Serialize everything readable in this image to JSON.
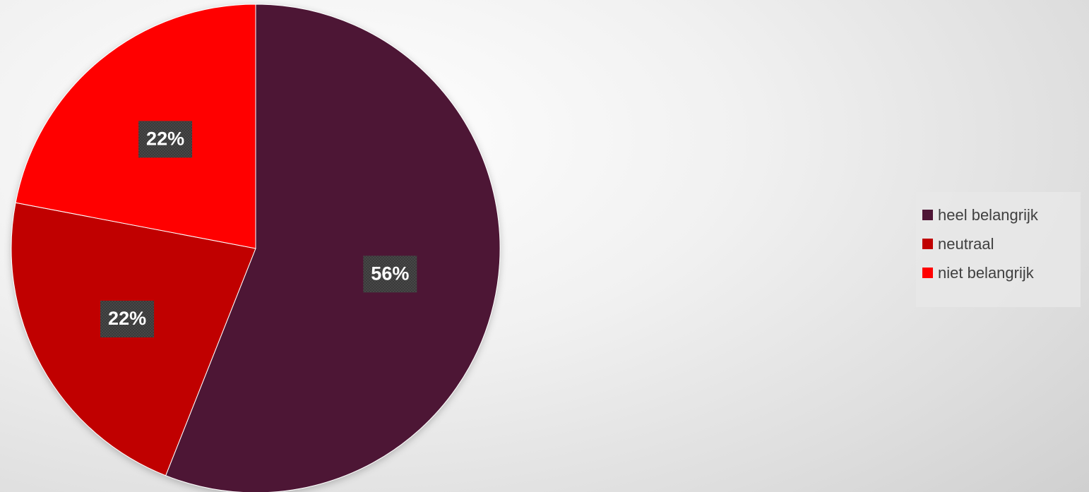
{
  "chart_data": {
    "type": "pie",
    "title": "",
    "categories": [
      "heel belangrijk",
      "neutraal",
      "niet belangrijk"
    ],
    "values": [
      56,
      22,
      22
    ],
    "data_labels": [
      "56%",
      "22%",
      "22%"
    ],
    "colors": [
      "#4e1535",
      "#c00000",
      "#ff0000"
    ],
    "legend_position": "right"
  }
}
